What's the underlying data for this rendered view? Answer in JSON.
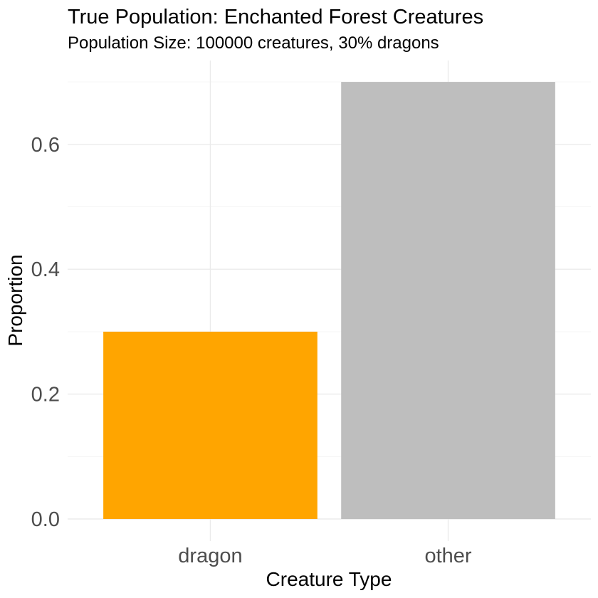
{
  "chart_data": {
    "type": "bar",
    "title": "True Population: Enchanted Forest Creatures",
    "subtitle": "Population Size: 100000 creatures, 30% dragons",
    "xlabel": "Creature Type",
    "ylabel": "Proportion",
    "categories": [
      "dragon",
      "other"
    ],
    "values": [
      0.3,
      0.7
    ],
    "colors": [
      "#FFA500",
      "#BEBEBE"
    ],
    "ylim": [
      0,
      0.7
    ],
    "y_ticks": [
      "0.0",
      "0.2",
      "0.4",
      "0.6"
    ],
    "grid": true,
    "legend": "none"
  }
}
